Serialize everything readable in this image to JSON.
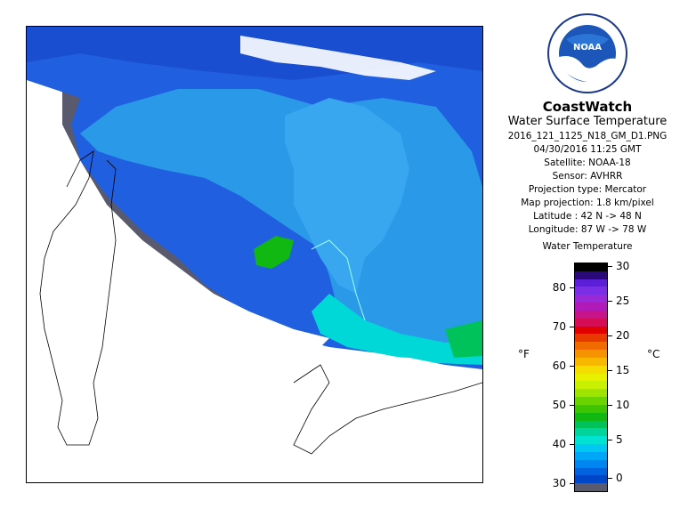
{
  "product": {
    "title": "CoastWatch",
    "subtitle": "Water Surface Temperature",
    "filename": "2016_121_1125_N18_GM_D1.PNG",
    "datetime": "04/30/2016   11:25 GMT",
    "satellite": "Satellite: NOAA-18",
    "sensor": "Sensor: AVHRR",
    "projection_type": "Projection type:  Mercator",
    "map_projection": "Map projection: 1.8 km/pixel",
    "latitude": "Latitude : 42 N -> 48 N",
    "longitude": "Longitude: 87 W -> 78 W"
  },
  "logo": {
    "text": "NOAA",
    "ring_text": "NATIONAL OCEANIC AND ATMOSPHERIC ADMINISTRATION · U.S. DEPARTMENT OF COMMERCE"
  },
  "legend": {
    "title": "Water Temperature",
    "unit_left": "°F",
    "unit_right": "°C",
    "fahrenheit_ticks": [
      "80",
      "70",
      "60",
      "50",
      "40",
      "30"
    ],
    "celsius_ticks": [
      "30",
      "25",
      "20",
      "15",
      "10",
      "5",
      "0"
    ],
    "colors": [
      "#000000",
      "#2a0a7a",
      "#5a1fd6",
      "#7a2ee6",
      "#9a2ad8",
      "#b01ab8",
      "#c8148a",
      "#d40d55",
      "#e00000",
      "#e83a00",
      "#f06a00",
      "#f59300",
      "#f8b800",
      "#f5dc00",
      "#e8f000",
      "#c8f000",
      "#9ee400",
      "#6bd400",
      "#3ec400",
      "#12b812",
      "#00c25a",
      "#00d49a",
      "#00e2d2",
      "#00c8f0",
      "#00a6f8",
      "#0086f0",
      "#0064e0",
      "#0046c8",
      "#5a5a6e"
    ]
  }
}
